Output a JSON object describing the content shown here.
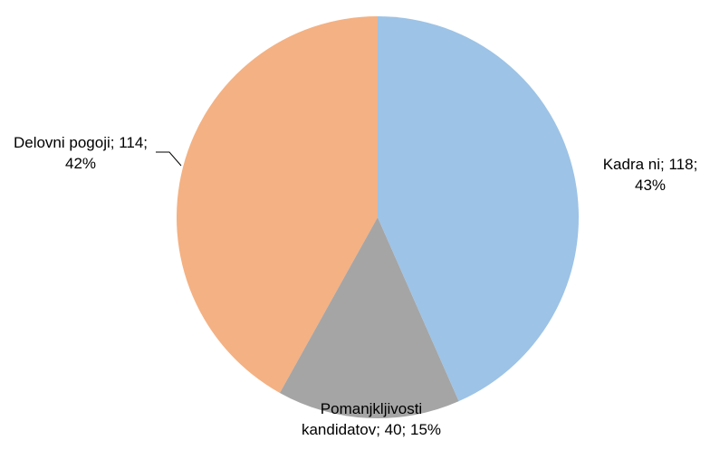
{
  "chart_data": {
    "type": "pie",
    "labels": [
      "Kadra ni; 118; 43%",
      "Pomanjkljivosti kandidatov; 40; 15%",
      "Delovni pogoji; 114; 42%"
    ],
    "values": [
      118,
      40,
      114
    ],
    "colors": [
      "#9dc3e6",
      "#a5a5a5",
      "#f4b183"
    ]
  }
}
